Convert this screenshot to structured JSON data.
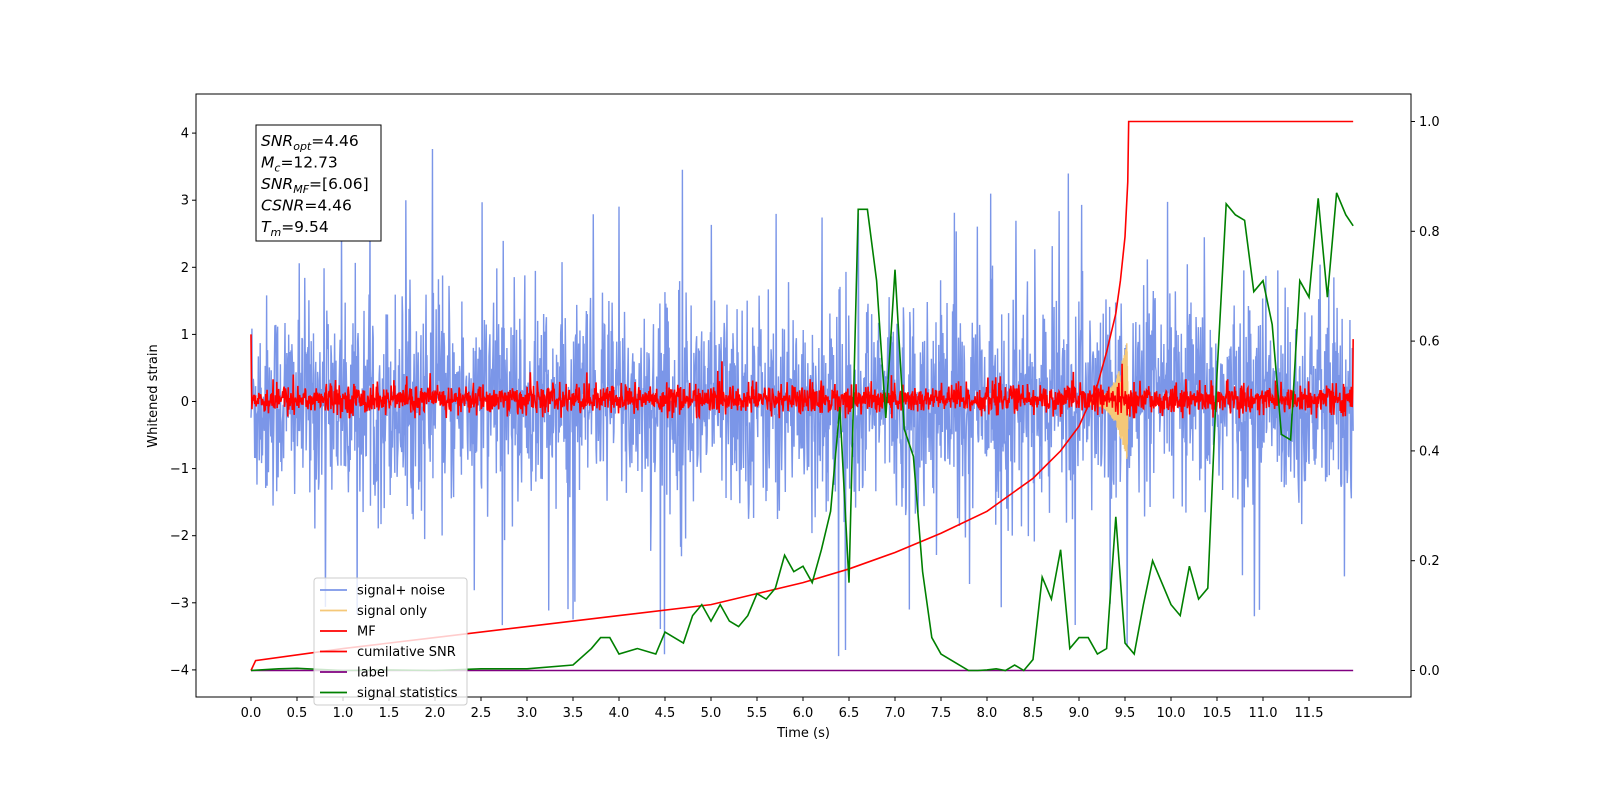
{
  "chart_data": {
    "type": "line",
    "xlabel": "Time (s)",
    "ylabel": "Whitened strain",
    "xlim": [
      -0.6,
      12.6
    ],
    "ylim": [
      -4.4,
      4.55
    ],
    "ylim_right": [
      -0.05,
      1.05
    ],
    "x_ticks": [
      0.0,
      0.5,
      1.0,
      1.5,
      2.0,
      2.5,
      3.0,
      3.5,
      4.0,
      4.5,
      5.0,
      5.5,
      6.0,
      6.5,
      7.0,
      7.5,
      8.0,
      8.5,
      9.0,
      9.5,
      10.0,
      10.5,
      11.0,
      11.5
    ],
    "x_tick_labels": [
      "0.0",
      "0.5",
      "1.0",
      "1.5",
      "2.0",
      "2.5",
      "3.0",
      "3.5",
      "4.0",
      "4.5",
      "5.0",
      "5.5",
      "6.0",
      "6.5",
      "7.0",
      "7.5",
      "8.0",
      "8.5",
      "9.0",
      "9.5",
      "10.0",
      "10.5",
      "11.0",
      "11.5"
    ],
    "y_ticks": [
      -4,
      -3,
      -2,
      -1,
      0,
      1,
      2,
      3,
      4
    ],
    "y_tick_labels": [
      "−4",
      "−3",
      "−2",
      "−1",
      "0",
      "1",
      "2",
      "3",
      "4"
    ],
    "y_right_ticks": [
      0.0,
      0.2,
      0.4,
      0.6,
      0.8,
      1.0
    ],
    "y_right_tick_labels": [
      "0.0",
      "0.2",
      "0.4",
      "0.6",
      "0.8",
      "1.0"
    ],
    "legend_position": "lower-left",
    "series": [
      {
        "name": "signal+ noise",
        "axis": "left",
        "color": "#7b96e8",
        "kind": "noise",
        "x_range": [
          0.0,
          11.98
        ],
        "typical_range": [
          -1.7,
          1.6
        ],
        "extremes": [
          -4.0,
          4.15
        ]
      },
      {
        "name": "signal only",
        "axis": "left",
        "color": "#f5c878",
        "kind": "chirp",
        "x_range": [
          9.1,
          9.54
        ],
        "peak_amplitude": 0.95
      },
      {
        "name": "MF",
        "axis": "left",
        "color": "#ff0000",
        "kind": "noise",
        "x_range": [
          0.0,
          11.98
        ],
        "typical_range": [
          -0.22,
          0.28
        ],
        "start_value": 1.0,
        "end_value": 0.93
      },
      {
        "name": "cumilative SNR",
        "axis": "right",
        "color": "#ff0000",
        "kind": "line",
        "x": [
          0.0,
          0.05,
          1.0,
          2.0,
          3.0,
          4.0,
          5.0,
          5.5,
          6.0,
          6.5,
          7.0,
          7.5,
          8.0,
          8.5,
          8.8,
          9.0,
          9.2,
          9.3,
          9.4,
          9.45,
          9.5,
          9.53,
          9.54,
          11.98
        ],
        "values": [
          0.0,
          0.018,
          0.04,
          0.06,
          0.08,
          0.1,
          0.12,
          0.14,
          0.16,
          0.185,
          0.215,
          0.25,
          0.29,
          0.35,
          0.4,
          0.445,
          0.52,
          0.58,
          0.65,
          0.71,
          0.79,
          0.89,
          1.0,
          1.0
        ]
      },
      {
        "name": "label",
        "axis": "right",
        "color": "#800080",
        "kind": "line",
        "x": [
          0.0,
          11.98
        ],
        "values": [
          0.0,
          0.0
        ]
      },
      {
        "name": "signal statistics",
        "axis": "right",
        "color": "#008000",
        "kind": "line",
        "x": [
          0.0,
          0.3,
          0.5,
          1.0,
          1.5,
          2.0,
          2.5,
          3.0,
          3.5,
          3.7,
          3.8,
          3.9,
          4.0,
          4.2,
          4.4,
          4.5,
          4.6,
          4.7,
          4.8,
          4.9,
          5.0,
          5.1,
          5.2,
          5.3,
          5.4,
          5.5,
          5.6,
          5.7,
          5.8,
          5.9,
          6.0,
          6.1,
          6.2,
          6.3,
          6.4,
          6.5,
          6.6,
          6.7,
          6.8,
          6.9,
          7.0,
          7.1,
          7.2,
          7.3,
          7.4,
          7.5,
          7.6,
          7.7,
          7.8,
          7.9,
          8.0,
          8.1,
          8.2,
          8.3,
          8.4,
          8.5,
          8.6,
          8.7,
          8.8,
          8.9,
          9.0,
          9.1,
          9.2,
          9.3,
          9.4,
          9.5,
          9.6,
          9.7,
          9.8,
          9.9,
          10.0,
          10.1,
          10.2,
          10.3,
          10.4,
          10.5,
          10.6,
          10.7,
          10.8,
          10.9,
          11.0,
          11.1,
          11.2,
          11.3,
          11.4,
          11.5,
          11.6,
          11.7,
          11.8,
          11.9,
          11.98
        ],
        "values": [
          0.0,
          0.003,
          0.004,
          0.0,
          0.001,
          0.0,
          0.003,
          0.003,
          0.01,
          0.04,
          0.06,
          0.06,
          0.03,
          0.04,
          0.03,
          0.07,
          0.06,
          0.05,
          0.1,
          0.12,
          0.09,
          0.12,
          0.09,
          0.08,
          0.1,
          0.14,
          0.13,
          0.15,
          0.21,
          0.18,
          0.19,
          0.16,
          0.22,
          0.29,
          0.48,
          0.16,
          0.84,
          0.84,
          0.71,
          0.46,
          0.73,
          0.44,
          0.39,
          0.18,
          0.06,
          0.03,
          0.02,
          0.01,
          0.0,
          0.0,
          0.001,
          0.003,
          0.0,
          0.01,
          0.0,
          0.02,
          0.17,
          0.13,
          0.22,
          0.04,
          0.06,
          0.06,
          0.03,
          0.04,
          0.28,
          0.05,
          0.03,
          0.12,
          0.2,
          0.16,
          0.12,
          0.1,
          0.19,
          0.13,
          0.15,
          0.54,
          0.85,
          0.83,
          0.82,
          0.69,
          0.71,
          0.63,
          0.43,
          0.42,
          0.71,
          0.68,
          0.86,
          0.68,
          0.87,
          0.83,
          0.81
        ]
      }
    ],
    "annotation_box": [
      {
        "base": "SNR",
        "sub": "opt",
        "rest": "=4.46"
      },
      {
        "base": "M",
        "sub": "c",
        "rest": "=12.73"
      },
      {
        "base": "SNR",
        "sub": "MF",
        "rest": "=[6.06]"
      },
      {
        "base": "CSNR",
        "sub": "",
        "rest": "=4.46"
      },
      {
        "base": "T",
        "sub": "m",
        "rest": "=9.54"
      }
    ]
  }
}
